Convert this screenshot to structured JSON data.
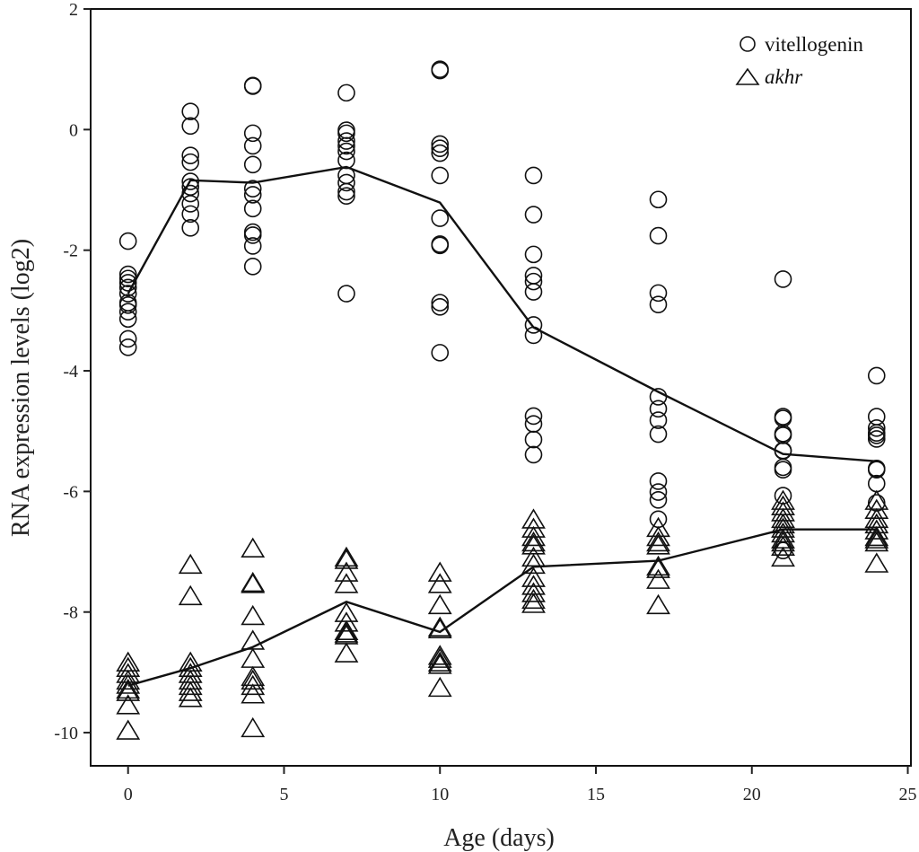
{
  "chart_data": {
    "type": "scatter",
    "title": "",
    "xlabel": "Age (days)",
    "ylabel": "RNA expression levels (log2)",
    "xlim": [
      -1.2,
      25.1
    ],
    "ylim": [
      -10.55,
      2
    ],
    "xticks": [
      0,
      5,
      10,
      15,
      20,
      25
    ],
    "yticks": [
      2,
      0,
      -2,
      -4,
      -6,
      -8,
      -10
    ],
    "xtick_labels": [
      "0",
      "5",
      "10",
      "15",
      "20",
      "25"
    ],
    "ytick_labels": [
      "2",
      "0",
      "-2",
      "-4",
      "-6",
      "-8",
      "-10"
    ],
    "grid": false,
    "legend_position": "top-right",
    "series": [
      {
        "name": "vitellogenin",
        "marker": "circle",
        "italic": false,
        "points": {
          "0": [
            -1.85,
            -2.4,
            -2.47,
            -2.54,
            -2.62,
            -2.72,
            -2.87,
            -2.91,
            -3.02,
            -3.14,
            -3.47,
            -3.61
          ],
          "2": [
            0.3,
            0.06,
            -0.43,
            -0.54,
            -0.86,
            -0.95,
            -1.06,
            -1.23,
            -1.4,
            -1.63
          ],
          "4": [
            0.73,
            0.72,
            -0.06,
            -0.27,
            -0.58,
            -0.98,
            -1.08,
            -1.31,
            -1.7,
            -1.75,
            -1.93,
            -2.27
          ],
          "7": [
            0.61,
            -0.01,
            -0.06,
            -0.19,
            -0.27,
            -0.36,
            -0.51,
            -0.76,
            -0.88,
            -1.03,
            -1.1,
            -2.72
          ],
          "10": [
            1.0,
            0.98,
            -0.24,
            -0.31,
            -0.39,
            -0.76,
            -1.47,
            -1.9,
            -1.92,
            -2.87,
            -2.94,
            -3.7
          ],
          "13": [
            -0.76,
            -1.41,
            -2.07,
            -2.42,
            -2.52,
            -2.69,
            -3.24,
            -3.41,
            -4.75,
            -4.88,
            -5.14,
            -5.39
          ],
          "17": [
            -1.16,
            -1.76,
            -2.71,
            -2.9,
            -4.43,
            -4.63,
            -4.82,
            -5.05,
            -5.83,
            -6.01,
            -6.14,
            -6.46
          ],
          "21": [
            -2.48,
            -4.76,
            -4.79,
            -5.04,
            -5.07,
            -5.32,
            -5.33,
            -5.6,
            -5.64,
            -6.07,
            -6.98
          ],
          "24": [
            -4.08,
            -4.76,
            -4.95,
            -5.03,
            -5.07,
            -5.13,
            -5.62,
            -5.64,
            -5.87,
            -6.19
          ]
        },
        "trend": {
          "x": [
            0,
            2,
            4,
            7,
            10,
            13,
            17,
            21,
            24
          ],
          "y": [
            -2.72,
            -0.84,
            -0.88,
            -0.62,
            -1.21,
            -3.28,
            -4.35,
            -5.38,
            -5.5
          ]
        }
      },
      {
        "name": "akhr",
        "marker": "triangle",
        "italic": true,
        "points": {
          "0": [
            -8.87,
            -8.96,
            -9.06,
            -9.17,
            -9.24,
            -9.32,
            -9.36,
            -9.58,
            -10.0
          ],
          "2": [
            -7.25,
            -7.77,
            -8.87,
            -8.96,
            -9.06,
            -9.17,
            -9.26,
            -9.36,
            -9.46
          ],
          "4": [
            -6.98,
            -7.55,
            -7.57,
            -8.1,
            -8.51,
            -8.81,
            -9.11,
            -9.17,
            -9.26,
            -9.4,
            -9.96
          ],
          "7": [
            -7.13,
            -7.17,
            -7.38,
            -7.57,
            -8.05,
            -8.21,
            -8.35,
            -8.39,
            -8.42,
            -8.72
          ],
          "10": [
            -7.38,
            -7.57,
            -7.92,
            -8.29,
            -8.32,
            -8.76,
            -8.81,
            -8.87,
            -8.91,
            -9.29
          ],
          "13": [
            -6.5,
            -6.65,
            -6.79,
            -6.88,
            -6.93,
            -7.13,
            -7.25,
            -7.47,
            -7.6,
            -7.72,
            -7.83,
            -7.9
          ],
          "17": [
            -6.64,
            -6.79,
            -6.88,
            -6.93,
            -7.28,
            -7.32,
            -7.5,
            -7.92
          ],
          "21": [
            -6.19,
            -6.28,
            -6.38,
            -6.49,
            -6.58,
            -6.65,
            -6.73,
            -6.83,
            -6.88,
            -6.95,
            -7.13
          ],
          "24": [
            -6.19,
            -6.34,
            -6.49,
            -6.58,
            -6.68,
            -6.79,
            -6.83,
            -6.88,
            -7.23
          ]
        },
        "trend": {
          "x": [
            0,
            2,
            4,
            7,
            10,
            13,
            17,
            21,
            24
          ],
          "y": [
            -9.22,
            -8.93,
            -8.58,
            -7.83,
            -8.33,
            -7.25,
            -7.15,
            -6.63,
            -6.63
          ]
        }
      }
    ],
    "colors": {
      "ink": "#111111",
      "background": "#ffffff"
    }
  }
}
